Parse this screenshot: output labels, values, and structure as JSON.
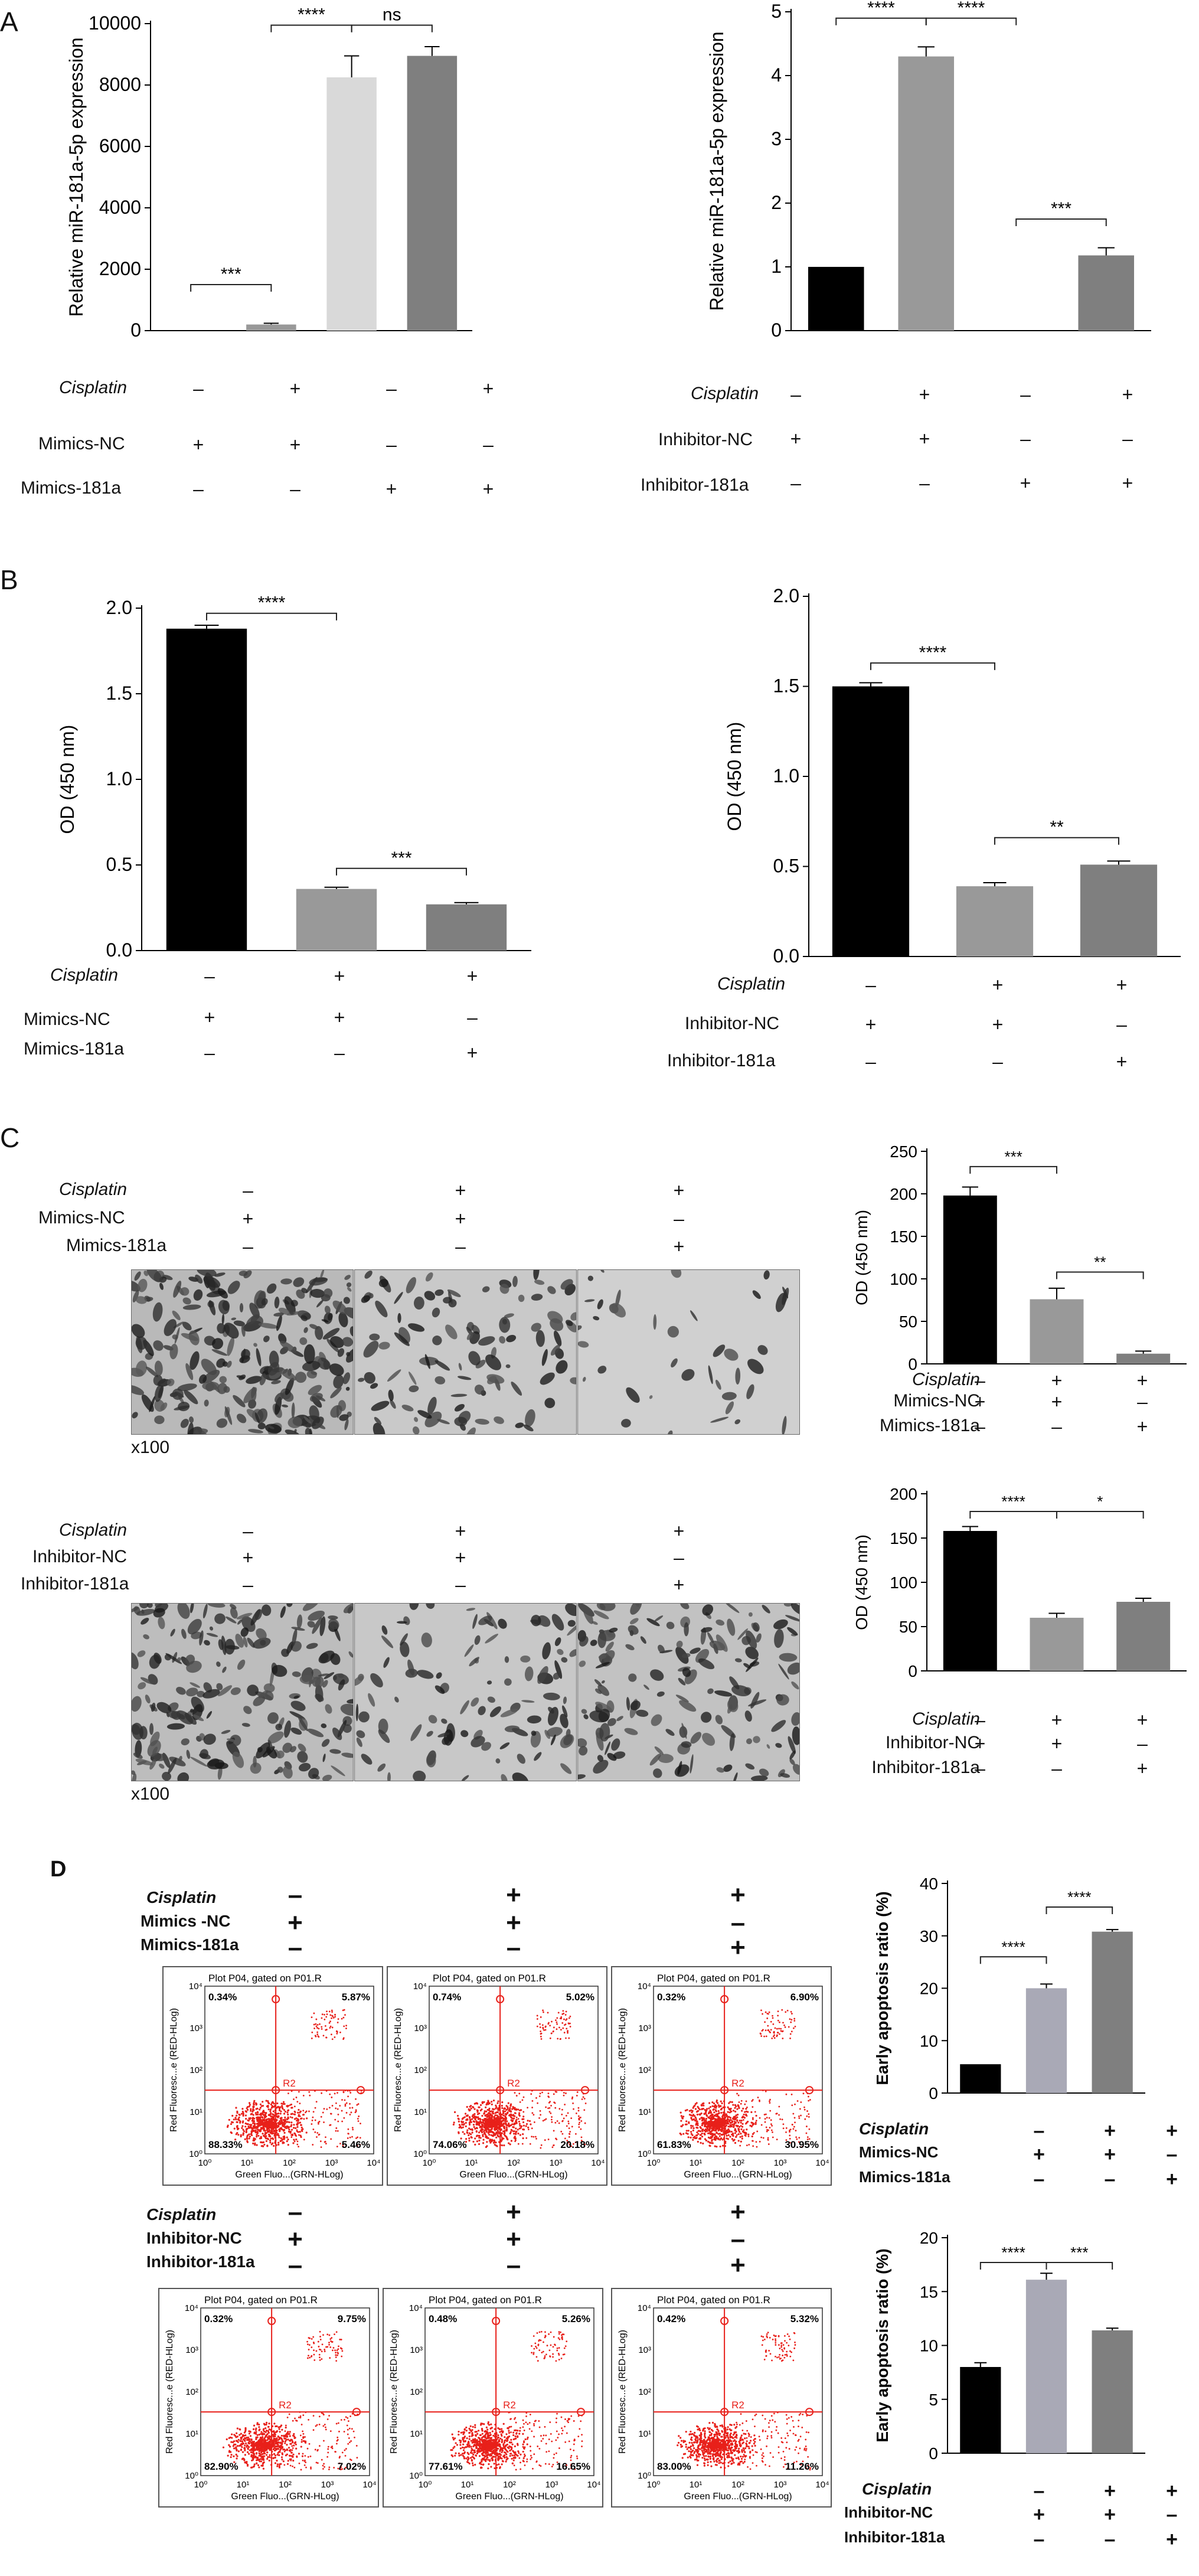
{
  "panels": {
    "A": {
      "letter": "A"
    },
    "B": {
      "letter": "B"
    },
    "C": {
      "letter": "C",
      "magnification": "x100"
    },
    "D": {
      "letter": "D"
    }
  },
  "conditions": {
    "cisplatin": "Cisplatin",
    "mimics_nc": "Mimics-NC",
    "mimics_181a": "Mimics-181a",
    "inhibitor_nc": "Inhibitor-NC",
    "inhibitor_181a": "Inhibitor-181a",
    "mimics_nc_d": "Mimics -NC",
    "plus": "+",
    "minus": "–"
  },
  "flow_plots": {
    "title": "Plot P04, gated on P01.R",
    "xlabel": "Green Fluo...(GRN-HLog)",
    "ylabel": "Red Fluoresc...e (RED-HLog)",
    "gate": "R2",
    "mimics": [
      {
        "ul": "0.34%",
        "ur": "5.87%",
        "ll": "88.33%",
        "lr": "5.46%"
      },
      {
        "ul": "0.74%",
        "ur": "5.02%",
        "ll": "74.06%",
        "lr": "20.18%"
      },
      {
        "ul": "0.32%",
        "ur": "6.90%",
        "ll": "61.83%",
        "lr": "30.95%"
      }
    ],
    "inhibitor": [
      {
        "ul": "0.32%",
        "ur": "9.75%",
        "ll": "82.90%",
        "lr": "7.02%"
      },
      {
        "ul": "0.48%",
        "ur": "5.26%",
        "ll": "77.61%",
        "lr": "16.65%"
      },
      {
        "ul": "0.42%",
        "ur": "5.32%",
        "ll": "83.00%",
        "lr": "11.26%"
      }
    ]
  },
  "chart_data": [
    {
      "id": "A1",
      "type": "bar",
      "ylabel": "Relative miR-181a-5p expression",
      "ylim": [
        0,
        10000
      ],
      "ticks": [
        0,
        2000,
        4000,
        6000,
        8000,
        10000
      ],
      "tick_labels": [
        "0",
        "2000",
        "4000",
        "6000",
        "8000",
        "10000"
      ],
      "values": [
        0,
        200,
        8250,
        8950
      ],
      "errors": [
        0,
        40,
        700,
        300
      ],
      "colors": [
        "#000000",
        "#999999",
        "#d9d9d9",
        "#7f7f7f"
      ],
      "sig": [
        {
          "from": 0,
          "to": 1,
          "label": "***",
          "y": 1500
        },
        {
          "from": 1,
          "to": 2,
          "label": "****",
          "y": 9950
        },
        {
          "from": 2,
          "to": 3,
          "label": "ns",
          "y": 9950
        }
      ]
    },
    {
      "id": "A2",
      "type": "bar",
      "ylabel": "Relative miR-181a-5p expression",
      "ylim": [
        0,
        5
      ],
      "ticks": [
        0,
        1,
        2,
        3,
        4,
        5
      ],
      "tick_labels": [
        "0",
        "1",
        "2",
        "3",
        "4",
        "5"
      ],
      "values": [
        1,
        4.3,
        0,
        1.18
      ],
      "errors": [
        0,
        0.15,
        0,
        0.12
      ],
      "colors": [
        "#000000",
        "#999999",
        "#d9d9d9",
        "#7f7f7f"
      ],
      "sig": [
        {
          "from": 0,
          "to": 1,
          "label": "****",
          "y": 4.9
        },
        {
          "from": 1,
          "to": 2,
          "label": "****",
          "y": 4.9
        },
        {
          "from": 2,
          "to": 3,
          "label": "***",
          "y": 1.75
        }
      ]
    },
    {
      "id": "B1",
      "type": "bar",
      "ylabel": "OD (450 nm)",
      "ylim": [
        0,
        2.0
      ],
      "ticks": [
        0,
        0.5,
        1.0,
        1.5,
        2.0
      ],
      "tick_labels": [
        "0.0",
        "0.5",
        "1.0",
        "1.5",
        "2.0"
      ],
      "values": [
        1.88,
        0.36,
        0.27
      ],
      "errors": [
        0.02,
        0.01,
        0.01
      ],
      "colors": [
        "#000000",
        "#999999",
        "#7f7f7f"
      ],
      "sig": [
        {
          "from": 0,
          "to": 1,
          "label": "****",
          "y": 1.97
        },
        {
          "from": 1,
          "to": 2,
          "label": "***",
          "y": 0.48
        }
      ]
    },
    {
      "id": "B2",
      "type": "bar",
      "ylabel": "OD (450 nm)",
      "ylim": [
        0,
        2.0
      ],
      "ticks": [
        0,
        0.5,
        1.0,
        1.5,
        2.0
      ],
      "tick_labels": [
        "0.0",
        "0.5",
        "1.0",
        "1.5",
        "2.0"
      ],
      "values": [
        1.5,
        0.39,
        0.51
      ],
      "errors": [
        0.02,
        0.02,
        0.02
      ],
      "colors": [
        "#000000",
        "#999999",
        "#7f7f7f"
      ],
      "sig": [
        {
          "from": 0,
          "to": 1,
          "label": "****",
          "y": 1.63
        },
        {
          "from": 1,
          "to": 2,
          "label": "**",
          "y": 0.66
        }
      ]
    },
    {
      "id": "C1",
      "type": "bar",
      "ylabel": "OD (450 nm)",
      "ylim": [
        0,
        250
      ],
      "ticks": [
        0,
        50,
        100,
        150,
        200,
        250
      ],
      "tick_labels": [
        "0",
        "50",
        "100",
        "150",
        "200",
        "250"
      ],
      "values": [
        198,
        76,
        12
      ],
      "errors": [
        10,
        13,
        3
      ],
      "colors": [
        "#000000",
        "#999999",
        "#7f7f7f"
      ],
      "sig": [
        {
          "from": 0,
          "to": 1,
          "label": "***",
          "y": 232
        },
        {
          "from": 1,
          "to": 2,
          "label": "**",
          "y": 108
        }
      ]
    },
    {
      "id": "C2",
      "type": "bar",
      "ylabel": "OD (450 nm)",
      "ylim": [
        0,
        200
      ],
      "ticks": [
        0,
        50,
        100,
        150,
        200
      ],
      "tick_labels": [
        "0",
        "50",
        "100",
        "150",
        "200"
      ],
      "values": [
        158,
        60,
        78
      ],
      "errors": [
        5,
        5,
        4
      ],
      "colors": [
        "#000000",
        "#999999",
        "#7f7f7f"
      ],
      "sig": [
        {
          "from": 0,
          "to": 1,
          "label": "****",
          "y": 180
        },
        {
          "from": 1,
          "to": 2,
          "label": "*",
          "y": 180
        }
      ]
    },
    {
      "id": "D1",
      "type": "bar",
      "ylabel": "Early apoptosis ratio (%)",
      "ylim": [
        0,
        40
      ],
      "ticks": [
        0,
        10,
        20,
        30,
        40
      ],
      "tick_labels": [
        "0",
        "10",
        "20",
        "30",
        "40"
      ],
      "values": [
        5.5,
        20,
        30.8
      ],
      "errors": [
        0,
        0.8,
        0.4
      ],
      "colors": [
        "#000000",
        "#a9a9b6",
        "#7f7f7f"
      ],
      "sig": [
        {
          "from": 0,
          "to": 1,
          "label": "****",
          "y": 26
        },
        {
          "from": 1,
          "to": 2,
          "label": "****",
          "y": 35.5
        }
      ]
    },
    {
      "id": "D2",
      "type": "bar",
      "ylabel": "Early apoptosis ratio (%)",
      "ylim": [
        0,
        20
      ],
      "ticks": [
        0,
        5,
        10,
        15,
        20
      ],
      "tick_labels": [
        "0",
        "5",
        "10",
        "15",
        "20"
      ],
      "values": [
        8,
        16.1,
        11.4
      ],
      "errors": [
        0.4,
        0.6,
        0.2
      ],
      "colors": [
        "#000000",
        "#a9a9b6",
        "#7f7f7f"
      ],
      "sig": [
        {
          "from": 0,
          "to": 1,
          "label": "****",
          "y": 17.7
        },
        {
          "from": 1,
          "to": 2,
          "label": "***",
          "y": 17.7
        }
      ]
    }
  ]
}
